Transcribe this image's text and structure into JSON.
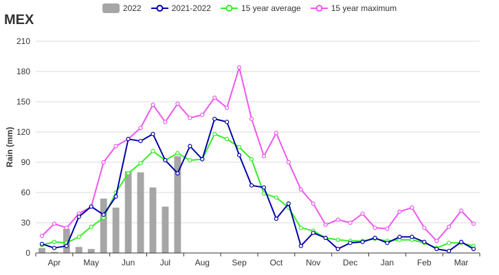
{
  "title": "MEX",
  "chart_data": {
    "type": "bar+line",
    "ylabel": "Rain (mm)",
    "xlabel": "",
    "ylim": [
      0,
      210
    ],
    "yticks": [
      0,
      30,
      60,
      90,
      120,
      150,
      180,
      210
    ],
    "month_labels": [
      "Apr",
      "May",
      "Jun",
      "Jul",
      "Aug",
      "Sep",
      "Oct",
      "Nov",
      "Dec",
      "Jan",
      "Feb",
      "Mar"
    ],
    "periods": 36,
    "grid": "horizontal",
    "legend_position": "top",
    "series": [
      {
        "name": "2022",
        "type": "bar",
        "color": "#a6a6a6",
        "values": [
          5,
          1,
          24,
          6,
          4,
          54,
          45,
          81,
          80,
          65,
          46,
          96
        ]
      },
      {
        "name": "2021-2022",
        "type": "line",
        "color": "#0000a8",
        "values": [
          9,
          5,
          7,
          36,
          46,
          38,
          56,
          113,
          111,
          118,
          92,
          79,
          106,
          93,
          133,
          130,
          97,
          67,
          65,
          34,
          49,
          7,
          20,
          15,
          4,
          10,
          11,
          15,
          10,
          16,
          16,
          11,
          4,
          2,
          11,
          4
        ]
      },
      {
        "name": "15 year average",
        "type": "line",
        "color": "#33ee22",
        "values": [
          8,
          11,
          10,
          16,
          26,
          35,
          60,
          79,
          89,
          101,
          92,
          99,
          92,
          93,
          118,
          113,
          105,
          93,
          59,
          55,
          45,
          25,
          22,
          15,
          13,
          12,
          12,
          14,
          12,
          13,
          13,
          10,
          5,
          10,
          10,
          7
        ]
      },
      {
        "name": "15 year maximum",
        "type": "line",
        "color": "#ee55ee",
        "values": [
          17,
          29,
          25,
          39,
          46,
          90,
          106,
          113,
          124,
          147,
          130,
          148,
          134,
          137,
          154,
          144,
          184,
          133,
          96,
          119,
          90,
          63,
          49,
          28,
          33,
          30,
          39,
          25,
          24,
          41,
          45,
          25,
          12,
          26,
          42,
          29
        ]
      }
    ]
  }
}
